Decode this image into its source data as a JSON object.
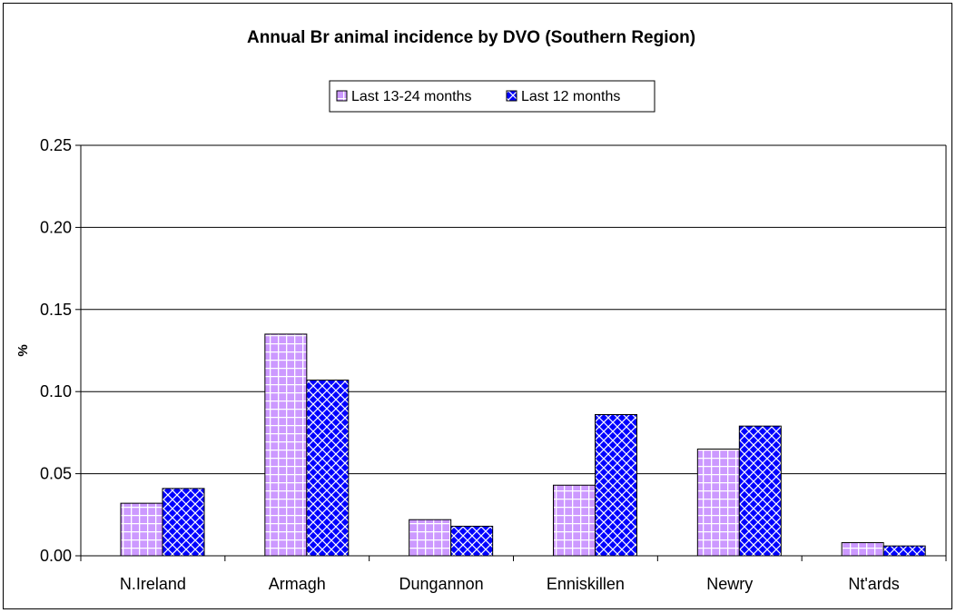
{
  "chart_data": {
    "type": "bar",
    "title": "Annual Br animal incidence by DVO (Southern Region)",
    "xlabel": "",
    "ylabel": "%",
    "categories": [
      "N.Ireland",
      "Armagh",
      "Dungannon",
      "Enniskillen",
      "Newry",
      "Nt'ards"
    ],
    "series": [
      {
        "name": "Last 13-24 months",
        "values": [
          0.032,
          0.135,
          0.022,
          0.043,
          0.065,
          0.008
        ],
        "color": "#cc99ff",
        "pattern": "grid"
      },
      {
        "name": "Last 12 months",
        "values": [
          0.041,
          0.107,
          0.018,
          0.086,
          0.079,
          0.006
        ],
        "color": "#0000ff",
        "pattern": "diagonal-crosshatch"
      }
    ],
    "ylim": [
      0,
      0.25
    ],
    "yticks": [
      "0.00",
      "0.05",
      "0.10",
      "0.15",
      "0.20",
      "0.25"
    ],
    "grid": true,
    "legend_position": "top"
  }
}
